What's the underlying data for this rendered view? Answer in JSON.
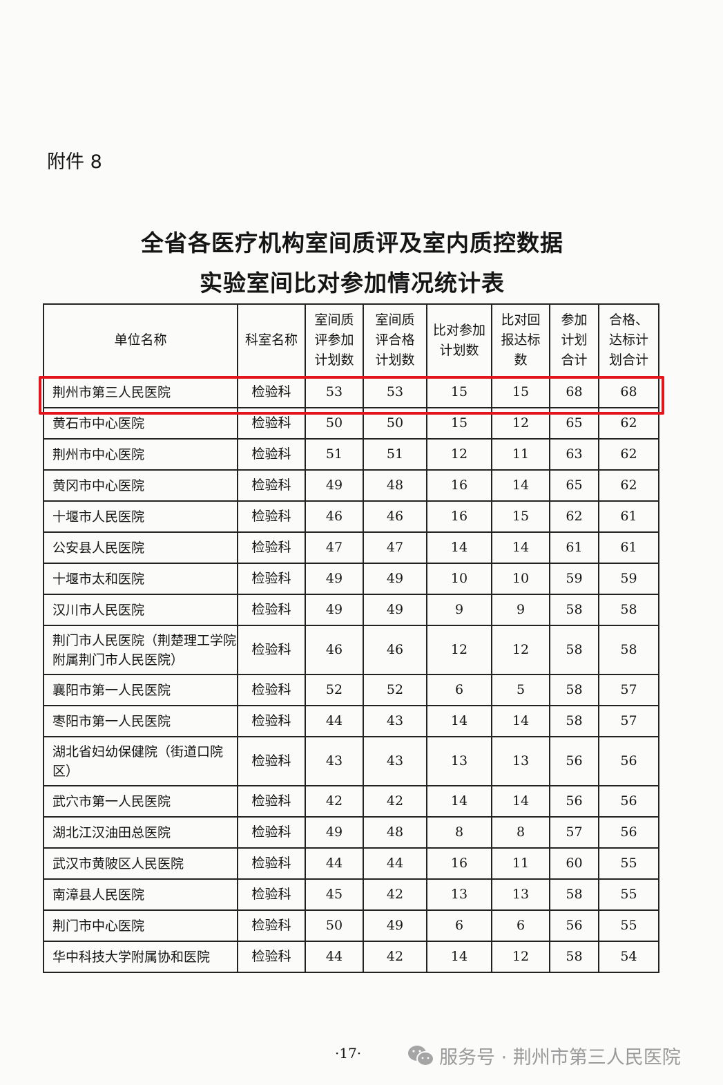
{
  "annex_label": "附件 8",
  "title_line1": "全省各医疗机构室间质评及室内质控数据",
  "title_line2": "实验室间比对参加情况统计表",
  "table": {
    "headers": [
      "单位名称",
      "科室名称",
      "室间质评参加计划数",
      "室间质评合格计划数",
      "比对参加计划数",
      "比对回报达标数",
      "参加计划合计",
      "合格、达标计划合计"
    ],
    "highlighted_row": 0,
    "highlight_color": "#e3141c",
    "rows": [
      [
        "荆州市第三人民医院",
        "检验科",
        "53",
        "53",
        "15",
        "15",
        "68",
        "68"
      ],
      [
        "黄石市中心医院",
        "检验科",
        "50",
        "50",
        "15",
        "12",
        "65",
        "62"
      ],
      [
        "荆州市中心医院",
        "检验科",
        "51",
        "51",
        "12",
        "11",
        "63",
        "62"
      ],
      [
        "黄冈市中心医院",
        "检验科",
        "49",
        "48",
        "16",
        "14",
        "65",
        "62"
      ],
      [
        "十堰市人民医院",
        "检验科",
        "46",
        "46",
        "16",
        "15",
        "62",
        "61"
      ],
      [
        "公安县人民医院",
        "检验科",
        "47",
        "47",
        "14",
        "14",
        "61",
        "61"
      ],
      [
        "十堰市太和医院",
        "检验科",
        "49",
        "49",
        "10",
        "10",
        "59",
        "59"
      ],
      [
        "汉川市人民医院",
        "检验科",
        "49",
        "49",
        "9",
        "9",
        "58",
        "58"
      ],
      [
        "荆门市人民医院（荆楚理工学院附属荆门市人民医院）",
        "检验科",
        "46",
        "46",
        "12",
        "12",
        "58",
        "58"
      ],
      [
        "襄阳市第一人民医院",
        "检验科",
        "52",
        "52",
        "6",
        "5",
        "58",
        "57"
      ],
      [
        "枣阳市第一人民医院",
        "检验科",
        "44",
        "43",
        "14",
        "14",
        "58",
        "57"
      ],
      [
        "湖北省妇幼保健院（街道口院区）",
        "检验科",
        "43",
        "43",
        "13",
        "13",
        "56",
        "56"
      ],
      [
        "武穴市第一人民医院",
        "检验科",
        "42",
        "42",
        "14",
        "14",
        "56",
        "56"
      ],
      [
        "湖北江汉油田总医院",
        "检验科",
        "49",
        "48",
        "8",
        "8",
        "57",
        "56"
      ],
      [
        "武汉市黄陂区人民医院",
        "检验科",
        "44",
        "44",
        "16",
        "11",
        "60",
        "55"
      ],
      [
        "南漳县人民医院",
        "检验科",
        "45",
        "42",
        "13",
        "13",
        "58",
        "55"
      ],
      [
        "荆门市中心医院",
        "检验科",
        "50",
        "49",
        "6",
        "6",
        "56",
        "55"
      ],
      [
        "华中科技大学附属协和医院",
        "检验科",
        "44",
        "42",
        "14",
        "12",
        "58",
        "54"
      ]
    ]
  },
  "page_number": "·17·",
  "watermark": {
    "icon": "wechat-icon",
    "text": "服务号 · 荆州市第三人民医院"
  }
}
